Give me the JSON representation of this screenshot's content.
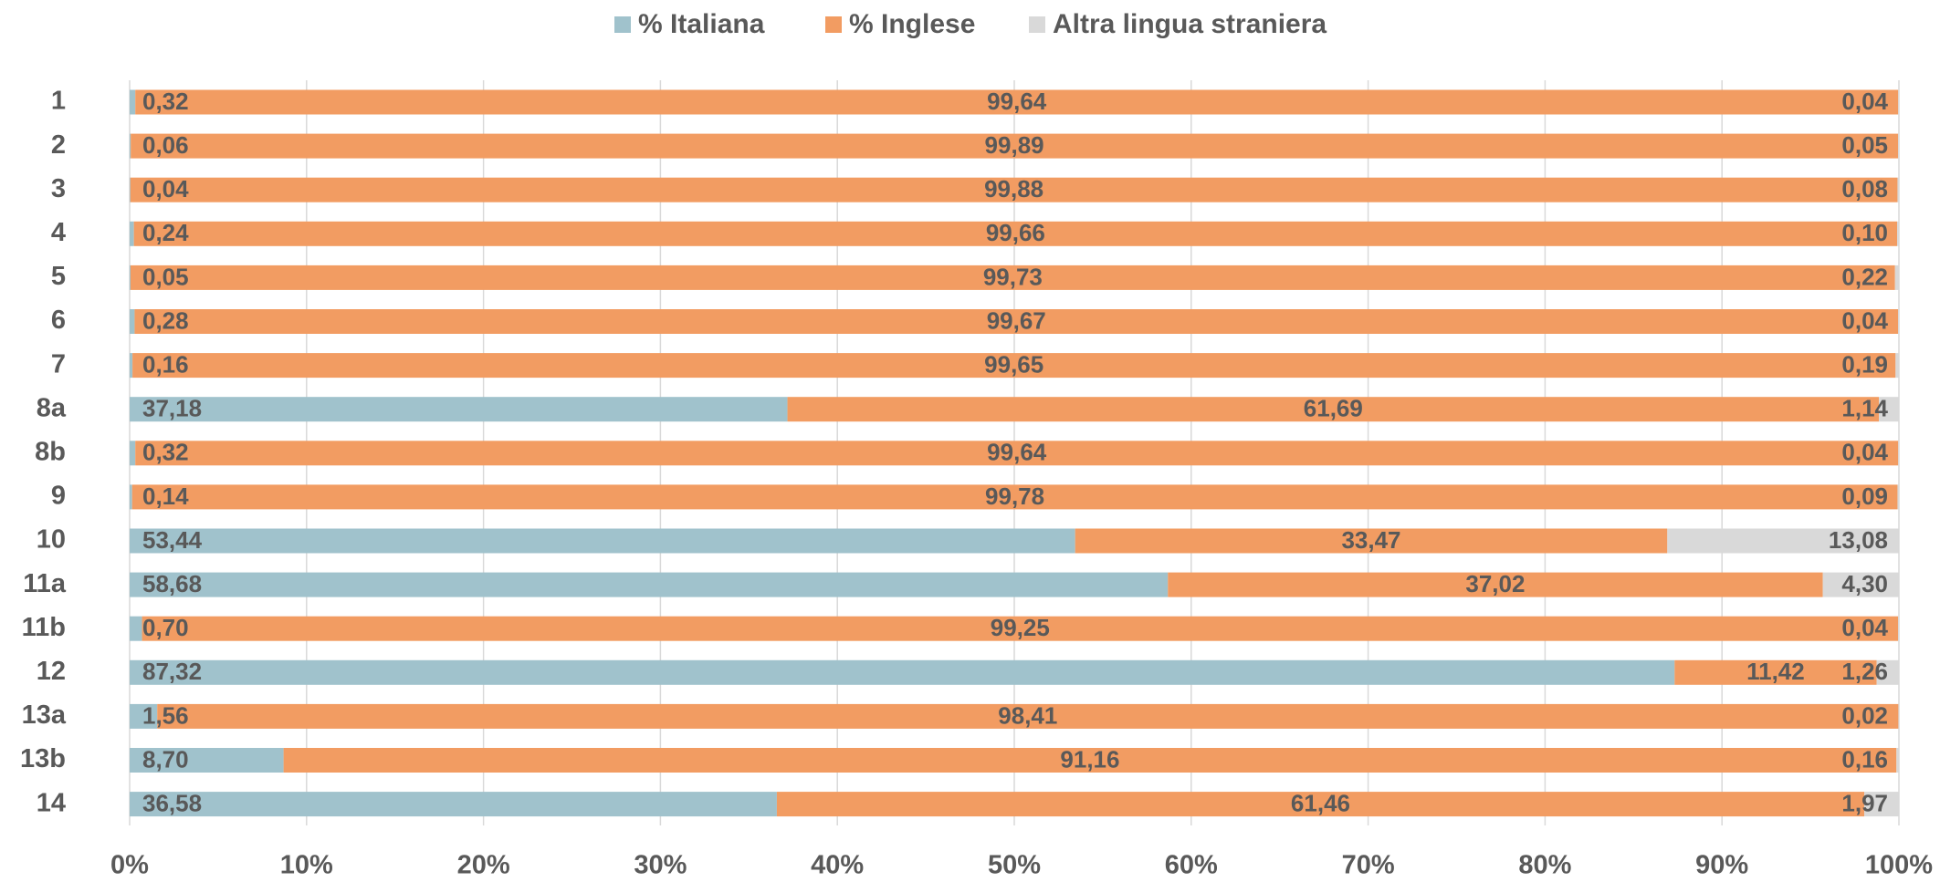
{
  "chart_data": {
    "type": "stacked_bar_horizontal",
    "legend": "top",
    "grid": true,
    "categories": [
      "1",
      "2",
      "3",
      "4",
      "5",
      "6",
      "7",
      "8a",
      "8b",
      "9",
      "10",
      "11a",
      "11b",
      "12",
      "13a",
      "13b",
      "14"
    ],
    "series": [
      {
        "name": "% Italiana",
        "color": "#a0c2cc",
        "values": [
          0.32,
          0.06,
          0.04,
          0.24,
          0.05,
          0.28,
          0.16,
          37.18,
          0.32,
          0.14,
          53.44,
          58.68,
          0.7,
          87.32,
          1.56,
          8.7,
          36.58
        ],
        "value_labels": [
          "0,32",
          "0,06",
          "0,04",
          "0,24",
          "0,05",
          "0,28",
          "0,16",
          "37,18",
          "0,32",
          "0,14",
          "53,44",
          "58,68",
          "0,70",
          "87,32",
          "1,56",
          "8,70",
          "36,58"
        ]
      },
      {
        "name": "% Inglese",
        "color": "#f29c62",
        "values": [
          99.64,
          99.89,
          99.88,
          99.66,
          99.73,
          99.67,
          99.65,
          61.69,
          99.64,
          99.78,
          33.47,
          37.02,
          99.25,
          11.42,
          98.41,
          91.16,
          61.46
        ],
        "value_labels": [
          "99,64",
          "99,89",
          "99,88",
          "99,66",
          "99,73",
          "99,67",
          "99,65",
          "61,69",
          "99,64",
          "99,78",
          "33,47",
          "37,02",
          "99,25",
          "11,42",
          "98,41",
          "91,16",
          "61,46"
        ]
      },
      {
        "name": "Altra lingua straniera",
        "color": "#d9d9d9",
        "values": [
          0.04,
          0.05,
          0.08,
          0.1,
          0.22,
          0.04,
          0.19,
          1.14,
          0.04,
          0.09,
          13.08,
          4.3,
          0.04,
          1.26,
          0.02,
          0.16,
          1.97
        ],
        "value_labels": [
          "0,04",
          "0,05",
          "0,08",
          "0,10",
          "0,22",
          "0,04",
          "0,19",
          "1,14",
          "0,04",
          "0,09",
          "13,08",
          "4,30",
          "0,04",
          "1,26",
          "0,02",
          "0,16",
          "1,97"
        ]
      }
    ],
    "xlim": [
      0,
      100
    ],
    "xticks": [
      {
        "value": 0,
        "label": "0%"
      },
      {
        "value": 10,
        "label": "10%"
      },
      {
        "value": 20,
        "label": "20%"
      },
      {
        "value": 30,
        "label": "30%"
      },
      {
        "value": 40,
        "label": "40%"
      },
      {
        "value": 50,
        "label": "50%"
      },
      {
        "value": 60,
        "label": "60%"
      },
      {
        "value": 70,
        "label": "70%"
      },
      {
        "value": 80,
        "label": "80%"
      },
      {
        "value": 90,
        "label": "90%"
      },
      {
        "value": 100,
        "label": "100%"
      }
    ]
  }
}
